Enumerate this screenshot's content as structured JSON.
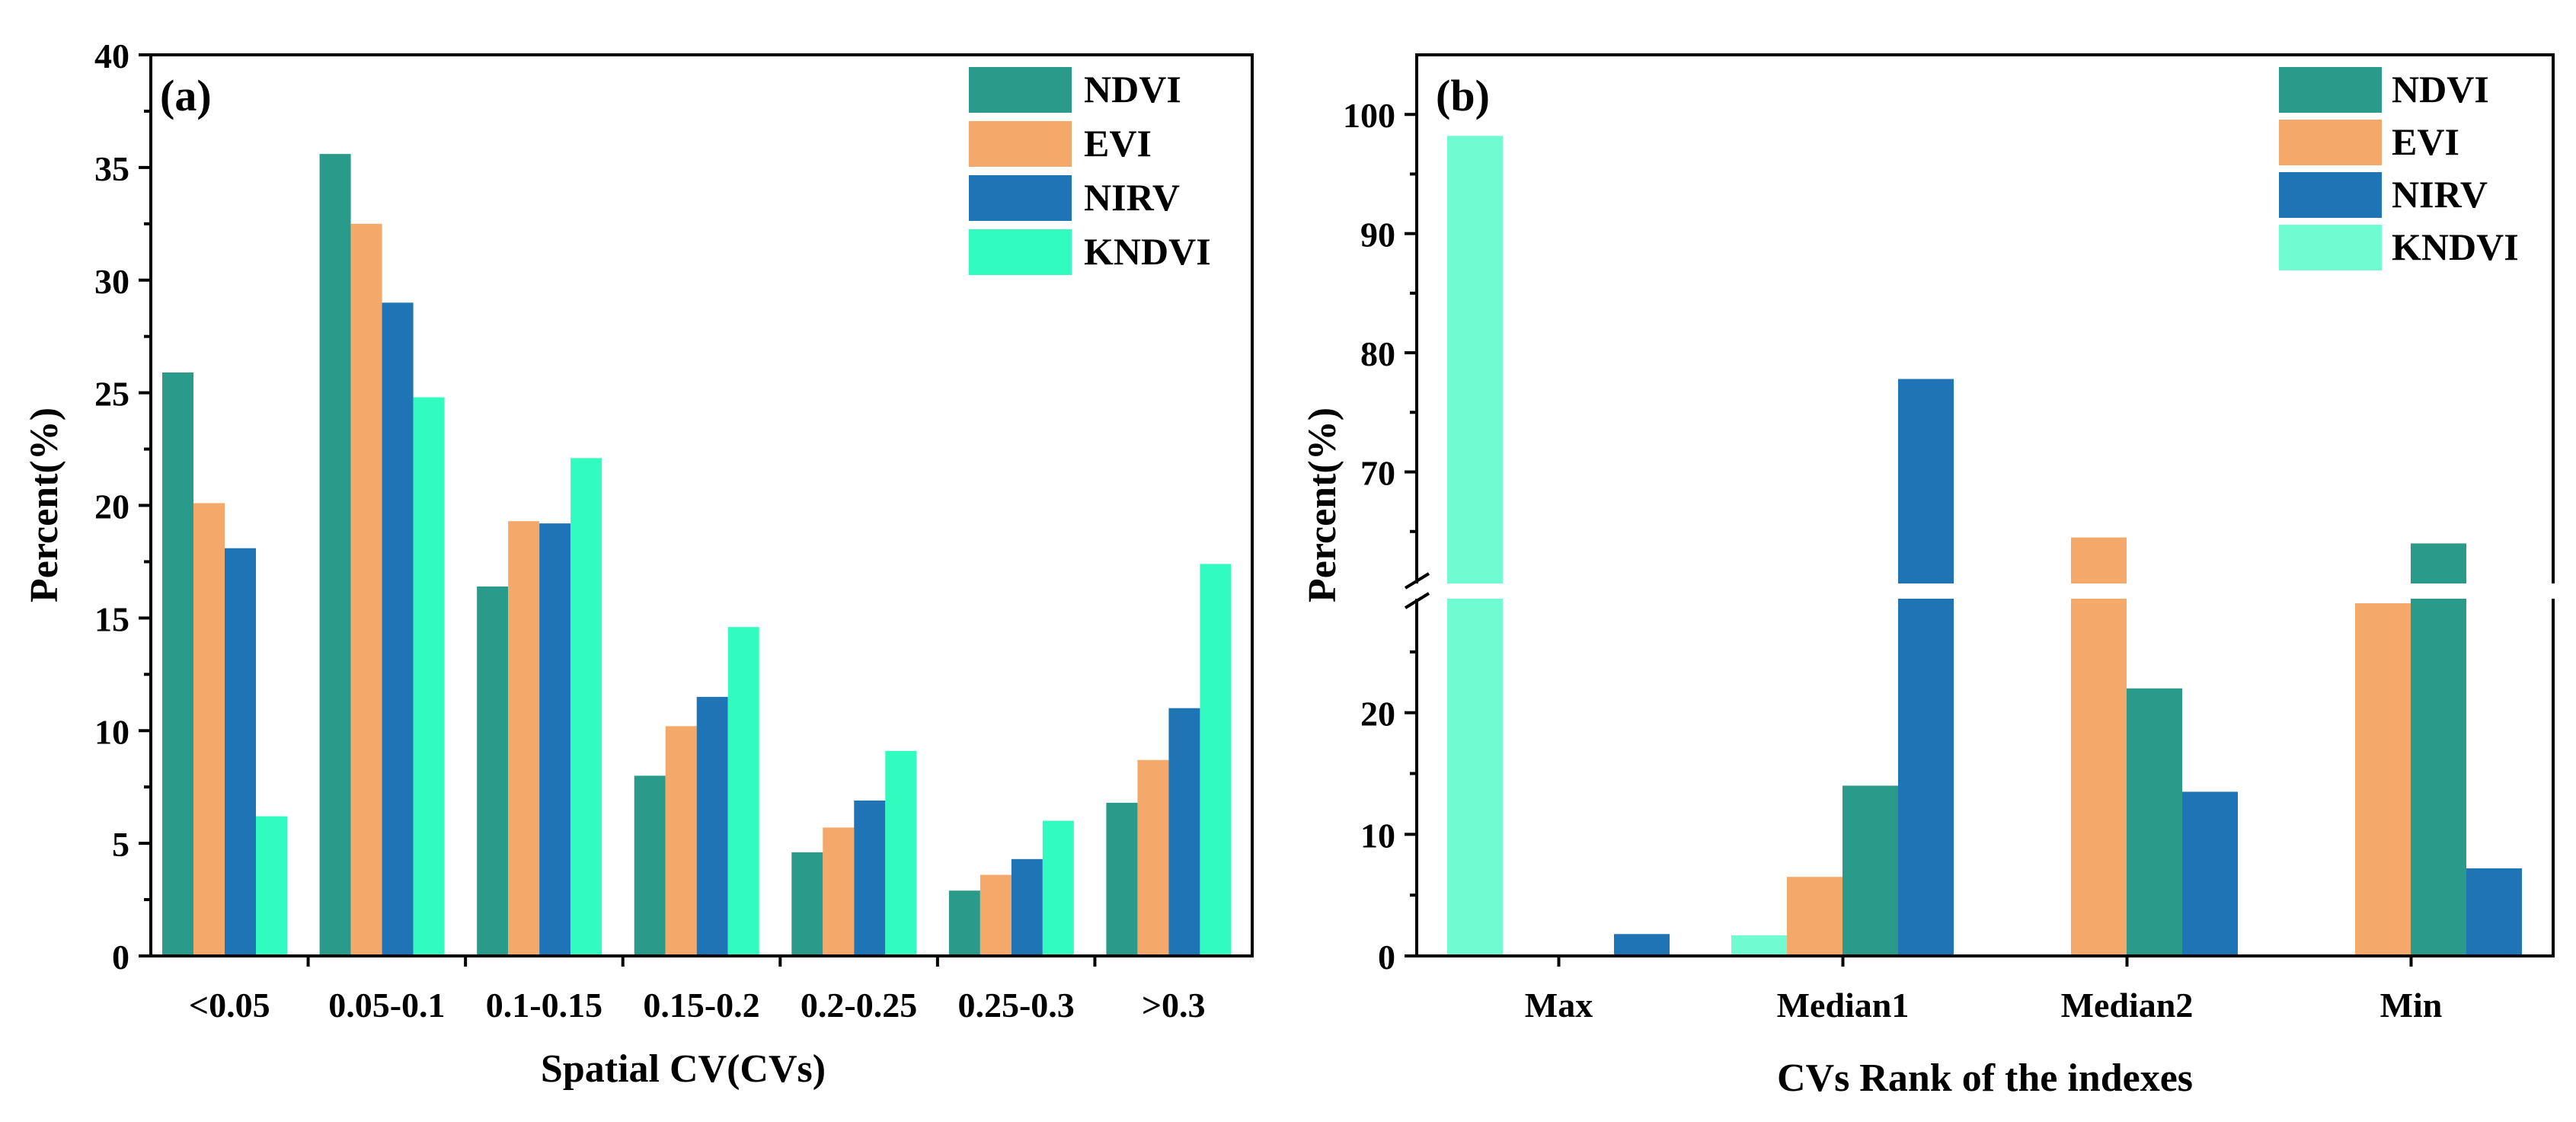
{
  "colors": {
    "NDVI": "#2a9a8a",
    "EVI": "#f4a86a",
    "NIRV": "#1f74b5",
    "KNDVI_a": "#31fbbf",
    "KNDVI_b": "#70fbd0"
  },
  "chart_data": [
    {
      "type": "bar",
      "panel_label": "(a)",
      "xlabel": "Spatial CV(CVs)",
      "ylabel": "Percent(%)",
      "ylim": [
        0,
        40
      ],
      "yticks": [
        "0",
        "5",
        "10",
        "15",
        "20",
        "25",
        "30",
        "35",
        "40"
      ],
      "legend_position": "top-right",
      "categories": [
        "<0.05",
        "0.05-0.1",
        "0.1-0.15",
        "0.15-0.2",
        "0.2-0.25",
        "0.25-0.3",
        ">0.3"
      ],
      "series": [
        {
          "name": "NDVI",
          "values": [
            25.9,
            35.6,
            16.4,
            8.0,
            4.6,
            2.9,
            6.8
          ]
        },
        {
          "name": "EVI",
          "values": [
            20.1,
            32.5,
            19.3,
            10.2,
            5.7,
            3.6,
            8.7
          ]
        },
        {
          "name": "NIRV",
          "values": [
            18.1,
            29.0,
            19.2,
            11.5,
            6.9,
            4.3,
            11.0
          ]
        },
        {
          "name": "KNDVI",
          "values": [
            6.2,
            24.8,
            22.1,
            14.6,
            9.1,
            6.0,
            17.4
          ]
        }
      ]
    },
    {
      "type": "bar",
      "panel_label": "(b)",
      "xlabel": "CVs Rank of the indexes",
      "ylabel": "Percent(%)",
      "axis_break": {
        "lower": [
          0,
          30
        ],
        "upper": [
          60,
          105
        ]
      },
      "yticks_lower": [
        "0",
        "10",
        "20"
      ],
      "yticks_upper": [
        "70",
        "80",
        "90",
        "100"
      ],
      "legend_position": "top-right",
      "categories": [
        "Max",
        "Median1",
        "Median2",
        "Min"
      ],
      "series": [
        {
          "name": "NDVI",
          "values": [
            0,
            14.0,
            22.0,
            64.0
          ]
        },
        {
          "name": "EVI",
          "values": [
            0,
            6.5,
            64.5,
            29.0
          ]
        },
        {
          "name": "NIRV",
          "values": [
            1.8,
            77.8,
            13.5,
            7.2
          ]
        },
        {
          "name": "KNDVI",
          "values": [
            98.2,
            1.7,
            0.1,
            0
          ]
        }
      ]
    }
  ]
}
